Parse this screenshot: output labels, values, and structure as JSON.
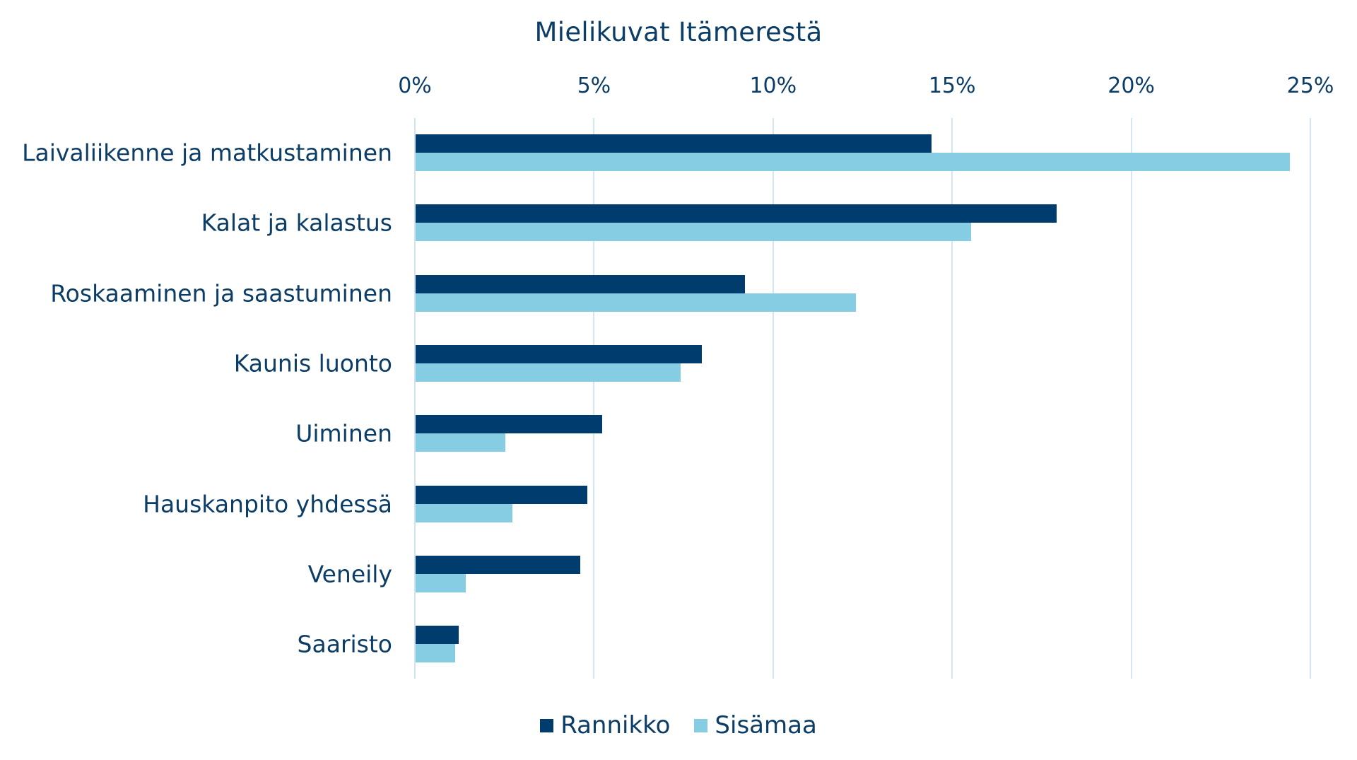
{
  "chart_data": {
    "type": "bar",
    "orientation": "horizontal",
    "title": "Mielikuvat Itämerestä",
    "xlabel": "",
    "ylabel": "",
    "xlim": [
      0,
      25
    ],
    "x_ticks": [
      "0%",
      "5%",
      "10%",
      "15%",
      "20%",
      "25%"
    ],
    "x_axis_position": "top",
    "grid": true,
    "legend_position": "bottom",
    "categories": [
      "Laivaliikenne ja matkustaminen",
      "Kalat ja kalastus",
      "Roskaaminen ja saastuminen",
      "Kaunis luonto",
      "Uiminen",
      "Hauskanpito yhdessä",
      "Veneily",
      "Saaristo"
    ],
    "series": [
      {
        "name": "Rannikko",
        "color": "#003d6e",
        "values": [
          14.4,
          17.9,
          9.2,
          8.0,
          5.2,
          4.8,
          4.6,
          1.2
        ]
      },
      {
        "name": "Sisämaa",
        "color": "#86cde4",
        "values": [
          24.4,
          15.5,
          12.3,
          7.4,
          2.5,
          2.7,
          1.4,
          1.1
        ]
      }
    ]
  }
}
